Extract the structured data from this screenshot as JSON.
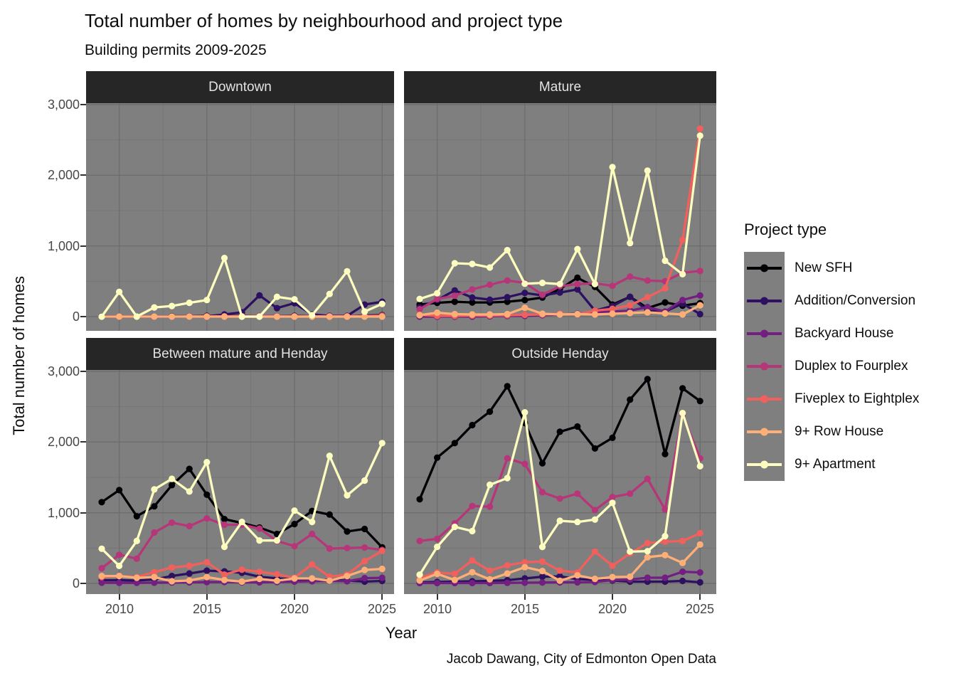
{
  "chart_data": {
    "type": "line",
    "title": "Total number of homes by neighbourhood and project type",
    "subtitle": "Building permits 2009-2025",
    "caption": "Jacob Dawang, City of Edmonton Open Data",
    "xlabel": "Year",
    "ylabel": "Total number of homes",
    "legend_title": "Project type",
    "x": [
      2009,
      2010,
      2011,
      2012,
      2013,
      2014,
      2015,
      2016,
      2017,
      2018,
      2019,
      2020,
      2021,
      2022,
      2023,
      2024,
      2025
    ],
    "ylim": [
      0,
      3000
    ],
    "x_tick_years": [
      2010,
      2015,
      2020,
      2025
    ],
    "x_tick_labels": [
      "2010",
      "2015",
      "2020",
      "2025"
    ],
    "y_tick_values": [
      0,
      1000,
      2000,
      3000
    ],
    "y_tick_labels": [
      "0",
      "1,000",
      "2,000",
      "3,000"
    ],
    "grid": "on",
    "legend_position": "right",
    "panel_bg": "#7f7f7f",
    "grid_major_color": "#6e6e6e",
    "grid_minor_color": "#757575",
    "strip_bg": "#262626",
    "series": [
      {
        "id": "new_sfh",
        "label": "New SFH",
        "color": "#000004"
      },
      {
        "id": "addition",
        "label": "Addition/Conversion",
        "color": "#2D1160"
      },
      {
        "id": "backyard",
        "label": "Backyard House",
        "color": "#721F81"
      },
      {
        "id": "duplex",
        "label": "Duplex to Fourplex",
        "color": "#B63679"
      },
      {
        "id": "fiveplex",
        "label": "Fiveplex to Eightplex",
        "color": "#F1605D"
      },
      {
        "id": "rowhouse",
        "label": "9+ Row House",
        "color": "#FEAF77"
      },
      {
        "id": "apartment",
        "label": "9+ Apartment",
        "color": "#FCFDBF"
      }
    ],
    "facets": [
      {
        "name": "Downtown",
        "values": {
          "new_sfh": [
            5,
            0,
            0,
            0,
            5,
            5,
            10,
            5,
            10,
            5,
            5,
            10,
            5,
            5,
            5,
            15,
            20
          ],
          "addition": [
            0,
            0,
            0,
            0,
            0,
            0,
            5,
            30,
            60,
            300,
            120,
            190,
            30,
            10,
            10,
            170,
            210
          ],
          "backyard": [
            0,
            0,
            0,
            0,
            0,
            0,
            0,
            0,
            5,
            5,
            5,
            5,
            5,
            5,
            5,
            10,
            10
          ],
          "duplex": [
            0,
            0,
            0,
            0,
            0,
            5,
            5,
            5,
            5,
            10,
            5,
            5,
            5,
            5,
            5,
            10,
            15
          ],
          "fiveplex": [
            0,
            0,
            0,
            0,
            0,
            0,
            0,
            0,
            0,
            0,
            0,
            0,
            0,
            0,
            0,
            5,
            5
          ],
          "rowhouse": [
            0,
            0,
            0,
            0,
            0,
            0,
            0,
            0,
            0,
            0,
            0,
            0,
            0,
            0,
            0,
            0,
            0
          ],
          "apartment": [
            0,
            350,
            0,
            130,
            150,
            195,
            235,
            830,
            0,
            0,
            280,
            245,
            20,
            320,
            640,
            70,
            180
          ]
        }
      },
      {
        "name": "Mature",
        "values": {
          "new_sfh": [
            170,
            195,
            210,
            200,
            200,
            210,
            235,
            270,
            390,
            550,
            420,
            170,
            280,
            120,
            200,
            155,
            190
          ],
          "addition": [
            130,
            235,
            370,
            270,
            240,
            275,
            335,
            300,
            340,
            385,
            85,
            150,
            280,
            85,
            70,
            185,
            35
          ],
          "backyard": [
            0,
            0,
            0,
            0,
            5,
            10,
            10,
            20,
            30,
            40,
            60,
            70,
            85,
            135,
            70,
            235,
            300
          ],
          "duplex": [
            105,
            250,
            295,
            385,
            450,
            510,
            477,
            310,
            430,
            460,
            470,
            435,
            565,
            510,
            500,
            620,
            645
          ],
          "fiveplex": [
            25,
            10,
            10,
            15,
            15,
            20,
            25,
            30,
            40,
            30,
            85,
            110,
            160,
            275,
            400,
            1085,
            2660
          ],
          "rowhouse": [
            20,
            55,
            35,
            30,
            30,
            35,
            125,
            40,
            30,
            35,
            30,
            40,
            50,
            60,
            45,
            30,
            160
          ],
          "apartment": [
            250,
            330,
            755,
            745,
            695,
            940,
            465,
            477,
            460,
            955,
            460,
            2115,
            1040,
            2065,
            790,
            600,
            2560
          ]
        }
      },
      {
        "name": "Between mature and Henday",
        "values": {
          "new_sfh": [
            1150,
            1320,
            950,
            1090,
            1390,
            1620,
            1255,
            910,
            855,
            790,
            700,
            840,
            1025,
            975,
            735,
            770,
            510
          ],
          "addition": [
            45,
            45,
            40,
            55,
            105,
            140,
            180,
            170,
            150,
            95,
            70,
            60,
            45,
            50,
            40,
            25,
            35
          ],
          "backyard": [
            10,
            8,
            8,
            10,
            12,
            15,
            18,
            20,
            15,
            15,
            20,
            25,
            30,
            35,
            30,
            75,
            80
          ],
          "duplex": [
            215,
            405,
            350,
            720,
            860,
            810,
            920,
            830,
            830,
            775,
            600,
            527,
            700,
            493,
            500,
            507,
            473
          ],
          "fiveplex": [
            90,
            105,
            90,
            160,
            225,
            250,
            300,
            125,
            195,
            165,
            130,
            80,
            270,
            95,
            125,
            315,
            460
          ],
          "rowhouse": [
            105,
            105,
            80,
            90,
            30,
            40,
            90,
            47,
            25,
            64,
            37,
            70,
            70,
            37,
            105,
            190,
            205
          ],
          "apartment": [
            490,
            248,
            600,
            1330,
            1480,
            1300,
            1715,
            517,
            870,
            607,
            607,
            1030,
            870,
            1805,
            1245,
            1455,
            1985
          ]
        }
      },
      {
        "name": "Outside Henday",
        "values": {
          "new_sfh": [
            1190,
            1780,
            1985,
            2240,
            2430,
            2790,
            2270,
            1700,
            2145,
            2220,
            1910,
            2060,
            2600,
            2890,
            1830,
            2760,
            2580
          ],
          "addition": [
            15,
            20,
            25,
            30,
            35,
            45,
            70,
            95,
            100,
            60,
            50,
            40,
            25,
            25,
            25,
            35,
            15
          ],
          "backyard": [
            5,
            5,
            5,
            5,
            5,
            8,
            10,
            12,
            15,
            15,
            20,
            47,
            54,
            81,
            81,
            165,
            155
          ],
          "duplex": [
            600,
            630,
            850,
            1095,
            1085,
            1770,
            1690,
            1290,
            1200,
            1270,
            1037,
            1222,
            1270,
            1480,
            1045,
            2390,
            1770
          ],
          "fiveplex": [
            80,
            155,
            135,
            325,
            180,
            256,
            300,
            310,
            181,
            154,
            450,
            250,
            425,
            570,
            590,
            600,
            710
          ],
          "rowhouse": [
            40,
            135,
            47,
            158,
            57,
            140,
            230,
            175,
            37,
            114,
            64,
            90,
            95,
            370,
            400,
            290,
            550
          ],
          "apartment": [
            124,
            517,
            800,
            740,
            1395,
            1490,
            2420,
            515,
            886,
            869,
            903,
            1140,
            450,
            456,
            668,
            2410,
            1658
          ]
        }
      }
    ]
  }
}
